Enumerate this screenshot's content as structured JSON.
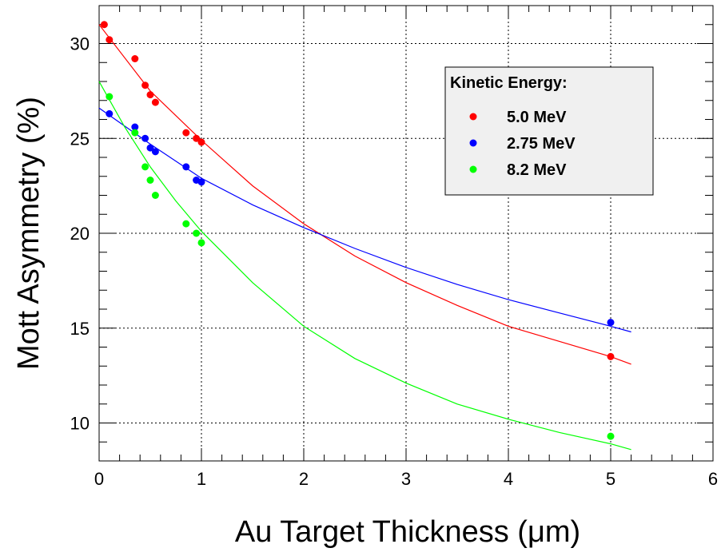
{
  "chart_data": {
    "type": "scatter",
    "xlabel": "Au Target Thickness (μm)",
    "ylabel": "Mott Asymmetry (%)",
    "xlim": [
      0,
      6
    ],
    "ylim": [
      8,
      32
    ],
    "x_ticks": [
      0,
      1,
      2,
      3,
      4,
      5,
      6
    ],
    "y_ticks": [
      10,
      15,
      20,
      25,
      30
    ],
    "grid": true,
    "legend": {
      "title": "Kinetic Energy:",
      "placement": "top-right"
    },
    "series": [
      {
        "name": "5.0 MeV",
        "color": "#ff0000",
        "points": [
          {
            "x": 0.05,
            "y": 31.0
          },
          {
            "x": 0.1,
            "y": 30.2
          },
          {
            "x": 0.35,
            "y": 29.2
          },
          {
            "x": 0.45,
            "y": 27.8
          },
          {
            "x": 0.5,
            "y": 27.3
          },
          {
            "x": 0.55,
            "y": 26.9
          },
          {
            "x": 0.85,
            "y": 25.3
          },
          {
            "x": 0.95,
            "y": 25.0
          },
          {
            "x": 1.0,
            "y": 24.8
          },
          {
            "x": 5.0,
            "y": 13.5
          }
        ],
        "fit": [
          {
            "x": 0.0,
            "y": 31.0
          },
          {
            "x": 0.5,
            "y": 27.5
          },
          {
            "x": 1.0,
            "y": 24.9
          },
          {
            "x": 1.5,
            "y": 22.5
          },
          {
            "x": 2.0,
            "y": 20.5
          },
          {
            "x": 2.5,
            "y": 18.8
          },
          {
            "x": 3.0,
            "y": 17.4
          },
          {
            "x": 3.5,
            "y": 16.2
          },
          {
            "x": 4.0,
            "y": 15.1
          },
          {
            "x": 4.5,
            "y": 14.3
          },
          {
            "x": 5.0,
            "y": 13.5
          },
          {
            "x": 5.2,
            "y": 13.1
          }
        ]
      },
      {
        "name": "2.75 MeV",
        "color": "#0000ff",
        "points": [
          {
            "x": 0.1,
            "y": 26.3
          },
          {
            "x": 0.35,
            "y": 25.6
          },
          {
            "x": 0.45,
            "y": 25.0
          },
          {
            "x": 0.5,
            "y": 24.5
          },
          {
            "x": 0.55,
            "y": 24.3
          },
          {
            "x": 0.85,
            "y": 23.5
          },
          {
            "x": 0.95,
            "y": 22.8
          },
          {
            "x": 1.0,
            "y": 22.7
          },
          {
            "x": 5.0,
            "y": 15.3
          }
        ],
        "fit": [
          {
            "x": 0.0,
            "y": 26.6
          },
          {
            "x": 0.5,
            "y": 24.7
          },
          {
            "x": 1.0,
            "y": 22.9
          },
          {
            "x": 1.5,
            "y": 21.5
          },
          {
            "x": 2.0,
            "y": 20.3
          },
          {
            "x": 2.5,
            "y": 19.2
          },
          {
            "x": 3.0,
            "y": 18.2
          },
          {
            "x": 3.5,
            "y": 17.3
          },
          {
            "x": 4.0,
            "y": 16.5
          },
          {
            "x": 4.5,
            "y": 15.8
          },
          {
            "x": 5.0,
            "y": 15.1
          },
          {
            "x": 5.2,
            "y": 14.8
          }
        ]
      },
      {
        "name": "8.2 MeV",
        "color": "#00ff00",
        "points": [
          {
            "x": 0.1,
            "y": 27.2
          },
          {
            "x": 0.35,
            "y": 25.3
          },
          {
            "x": 0.45,
            "y": 23.5
          },
          {
            "x": 0.5,
            "y": 22.8
          },
          {
            "x": 0.55,
            "y": 22.0
          },
          {
            "x": 0.85,
            "y": 20.5
          },
          {
            "x": 0.95,
            "y": 20.0
          },
          {
            "x": 1.0,
            "y": 19.5
          },
          {
            "x": 5.0,
            "y": 9.3
          }
        ],
        "fit": [
          {
            "x": 0.0,
            "y": 28.0
          },
          {
            "x": 0.25,
            "y": 25.6
          },
          {
            "x": 0.5,
            "y": 23.5
          },
          {
            "x": 0.75,
            "y": 21.7
          },
          {
            "x": 1.0,
            "y": 20.1
          },
          {
            "x": 1.5,
            "y": 17.4
          },
          {
            "x": 2.0,
            "y": 15.1
          },
          {
            "x": 2.5,
            "y": 13.4
          },
          {
            "x": 3.0,
            "y": 12.1
          },
          {
            "x": 3.5,
            "y": 11.0
          },
          {
            "x": 4.0,
            "y": 10.2
          },
          {
            "x": 4.5,
            "y": 9.5
          },
          {
            "x": 5.0,
            "y": 8.9
          },
          {
            "x": 5.2,
            "y": 8.6
          }
        ]
      }
    ]
  }
}
